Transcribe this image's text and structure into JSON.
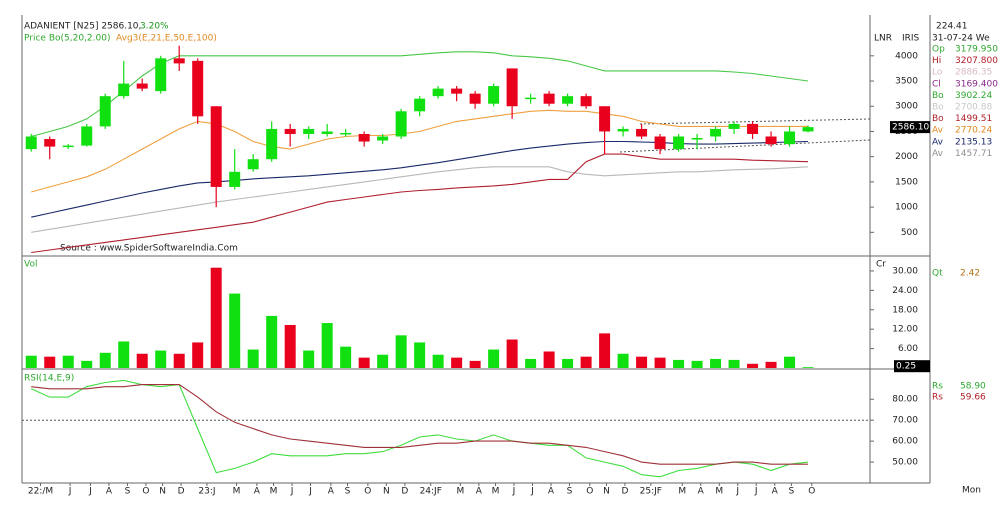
{
  "header": {
    "symbol": "ADANIENT [N25] 2586.10,",
    "change": "3.20%",
    "indicator1": "Price Bo(5,20,2.00)",
    "indicator2": "Avg3(E,21,E,50,E,100)",
    "source": "Source : www.SpiderSoftwareIndia.Com",
    "tags": [
      "LNR",
      "IRIS"
    ]
  },
  "info_panel": {
    "top": "224.41",
    "date": "31-07-24 We",
    "rows": [
      {
        "label": "Op",
        "value": "3179.950",
        "color": "#2fa82f"
      },
      {
        "label": "Hi",
        "value": "3207.800",
        "color": "#b0202a"
      },
      {
        "label": "Lo",
        "value": "2886.35",
        "color": "#d8b8c8"
      },
      {
        "label": "Cl",
        "value": "3169.400",
        "color": "#8a2a8a"
      },
      {
        "label": "Bo",
        "value": "3902.24",
        "color": "#2fa82f"
      },
      {
        "label": "Bo",
        "value": "2700.88",
        "color": "#c8c8c8"
      },
      {
        "label": "Bo",
        "value": "1499.51",
        "color": "#b0202a"
      },
      {
        "label": "Av",
        "value": "2770.24",
        "color": "#e08a20"
      },
      {
        "label": "Av",
        "value": "2135.13",
        "color": "#1a2a6a"
      },
      {
        "label": "Av",
        "value": "1457.71",
        "color": "#909090"
      }
    ],
    "volume_caption": "Cr",
    "volume_quote": {
      "label": "Qt",
      "value": "2.42"
    },
    "rsi_rows": [
      {
        "label": "Rs",
        "value": "58.90",
        "color": "#2fa82f"
      },
      {
        "label": "Rs",
        "value": "59.66",
        "color": "#b0202a"
      }
    ],
    "period": "Mon"
  },
  "chart_data": [
    {
      "type": "candlestick",
      "x": [
        0,
        1,
        2,
        3,
        4,
        5,
        6,
        7,
        8,
        9,
        10,
        11,
        12,
        13,
        14,
        15,
        16,
        17,
        18,
        19,
        20,
        21,
        22,
        23,
        24,
        25,
        26,
        27,
        28,
        29,
        30,
        31,
        32,
        33,
        34,
        35,
        36,
        37,
        38,
        39,
        40,
        41,
        42
      ],
      "open": [
        2150,
        2350,
        2200,
        2220,
        2600,
        3200,
        3450,
        3300,
        3950,
        3900,
        3000,
        1400,
        1750,
        1950,
        2550,
        2450,
        2450,
        2450,
        2450,
        2320,
        2400,
        2900,
        3200,
        3350,
        3250,
        3050,
        3750,
        3150,
        3250,
        3050,
        3200,
        3000,
        2500,
        2550,
        2400,
        2150,
        2350,
        2400,
        2550,
        2650,
        2400,
        2250,
        2500
      ],
      "high": [
        2450,
        2400,
        2250,
        2650,
        3250,
        3900,
        3550,
        4000,
        4200,
        3950,
        3000,
        2150,
        2050,
        2700,
        2650,
        2600,
        2650,
        2550,
        2500,
        2450,
        2950,
        3200,
        3400,
        3400,
        3300,
        3450,
        3750,
        3250,
        3300,
        3250,
        3250,
        3000,
        2600,
        2650,
        2450,
        2450,
        2450,
        2600,
        2700,
        2700,
        2500,
        2600,
        2620
      ],
      "low": [
        2100,
        1950,
        2150,
        2200,
        2550,
        3150,
        3300,
        3250,
        3700,
        2650,
        1000,
        1350,
        1700,
        1900,
        2200,
        2350,
        2400,
        2400,
        2200,
        2250,
        2350,
        2800,
        3150,
        3100,
        2950,
        3000,
        2750,
        3050,
        3000,
        3000,
        2950,
        2050,
        2400,
        2350,
        2050,
        2100,
        2150,
        2300,
        2450,
        2350,
        2200,
        2200,
        2480
      ],
      "close": [
        2400,
        2200,
        2220,
        2600,
        3200,
        3450,
        3350,
        3950,
        3850,
        2800,
        1400,
        1700,
        1950,
        2550,
        2450,
        2550,
        2500,
        2470,
        2300,
        2400,
        2900,
        3150,
        3350,
        3250,
        3050,
        3400,
        3000,
        3170,
        3050,
        3200,
        3000,
        2500,
        2550,
        2400,
        2150,
        2400,
        2370,
        2550,
        2650,
        2450,
        2250,
        2500,
        2586.1
      ],
      "up_color": "#10e010",
      "down_color": "#e8001c",
      "last_price_label": "2586.10",
      "overlays": [
        {
          "color": "#48c848",
          "values": [
            2400,
            2500,
            2600,
            2750,
            3000,
            3300,
            3600,
            3850,
            4000,
            4000,
            4000,
            4000,
            4000,
            4000,
            4000,
            4000,
            4000,
            4000,
            4000,
            4000,
            4000,
            4030,
            4060,
            4080,
            4080,
            4060,
            4000,
            3980,
            3950,
            3900,
            3800,
            3700,
            3700,
            3700,
            3700,
            3700,
            3700,
            3700,
            3680,
            3650,
            3600,
            3550,
            3500
          ]
        },
        {
          "color": "#f0a040",
          "values": [
            1300,
            1400,
            1500,
            1600,
            1750,
            1950,
            2150,
            2350,
            2550,
            2700,
            2650,
            2500,
            2300,
            2200,
            2150,
            2250,
            2350,
            2400,
            2420,
            2420,
            2450,
            2500,
            2600,
            2700,
            2750,
            2800,
            2850,
            2900,
            2920,
            2900,
            2900,
            2850,
            2800,
            2700,
            2650,
            2600,
            2600,
            2600,
            2600,
            2600,
            2600,
            2600,
            2600
          ]
        },
        {
          "color": "#1a2a6a",
          "values": [
            800,
            880,
            960,
            1040,
            1120,
            1200,
            1280,
            1350,
            1420,
            1480,
            1500,
            1530,
            1560,
            1580,
            1600,
            1620,
            1650,
            1680,
            1710,
            1740,
            1780,
            1830,
            1880,
            1940,
            2000,
            2060,
            2120,
            2170,
            2210,
            2250,
            2280,
            2300,
            2300,
            2290,
            2280,
            2260,
            2250,
            2250,
            2260,
            2270,
            2280,
            2290,
            2300
          ]
        },
        {
          "color": "#b8b8b8",
          "values": [
            500,
            560,
            620,
            680,
            740,
            800,
            860,
            920,
            980,
            1040,
            1100,
            1150,
            1200,
            1250,
            1300,
            1350,
            1400,
            1450,
            1500,
            1550,
            1600,
            1650,
            1700,
            1740,
            1780,
            1800,
            1800,
            1800,
            1800,
            1700,
            1650,
            1620,
            1640,
            1660,
            1680,
            1700,
            1700,
            1720,
            1740,
            1750,
            1760,
            1780,
            1800
          ]
        },
        {
          "color": "#b02030",
          "values": [
            100,
            150,
            200,
            250,
            300,
            350,
            400,
            450,
            500,
            550,
            600,
            650,
            700,
            800,
            900,
            1000,
            1100,
            1150,
            1200,
            1250,
            1300,
            1330,
            1350,
            1380,
            1400,
            1420,
            1450,
            1500,
            1550,
            1550,
            1900,
            2050,
            2050,
            2000,
            1950,
            1950,
            1950,
            1950,
            1950,
            1930,
            1920,
            1910,
            1900
          ]
        }
      ],
      "ylim": [
        50,
        4750
      ],
      "yticks": [
        500,
        1000,
        1500,
        2000,
        2500,
        3000,
        3500,
        4000
      ]
    },
    {
      "type": "bar",
      "title": "Vol",
      "values": [
        3.8,
        3.5,
        3.8,
        2.2,
        4.7,
        8.2,
        4.4,
        5.4,
        4.4,
        7.9,
        31,
        23,
        5.7,
        16.1,
        13.3,
        5.4,
        13.9,
        6.6,
        3.2,
        4.1,
        10.1,
        7.9,
        4.1,
        3.2,
        2.2,
        5.7,
        8.8,
        2.8,
        5.1,
        2.8,
        3.5,
        10.7,
        4.4,
        3.5,
        3.2,
        2.5,
        2.2,
        2.8,
        2.5,
        1.3,
        1.9,
        3.5,
        0.25
      ],
      "up_color": "#10e010",
      "down_color": "#e8001c",
      "ylim": [
        0,
        34
      ],
      "yticks": [
        {
          "value": 6,
          "label": "6.00"
        },
        {
          "value": 12,
          "label": "12.00"
        },
        {
          "value": 18,
          "label": "18.00"
        },
        {
          "value": 24,
          "label": "24.00"
        },
        {
          "value": 30,
          "label": "30.00"
        }
      ]
    },
    {
      "type": "line",
      "title": "RSI(14,E,9)",
      "series": [
        {
          "color": "#40dd40",
          "values": [
            85,
            81,
            81,
            86,
            88,
            89,
            87,
            86,
            87,
            66,
            45,
            47,
            50,
            54,
            53,
            53,
            53,
            54,
            54,
            55,
            58,
            62,
            63,
            61,
            60,
            63,
            60,
            59,
            58,
            58,
            52,
            50,
            48,
            44,
            43,
            46,
            47,
            49,
            50,
            49,
            46,
            49,
            50
          ]
        },
        {
          "color": "#a0303a",
          "values": [
            86,
            85,
            85,
            85,
            86,
            86,
            87,
            87,
            87,
            81,
            74,
            69,
            66,
            63,
            61,
            60,
            59,
            58,
            57,
            57,
            57,
            58,
            59,
            59,
            60,
            60,
            60,
            59,
            59,
            58,
            57,
            55,
            53,
            50,
            49,
            49,
            49,
            49,
            50,
            50,
            49,
            49,
            49
          ]
        }
      ],
      "reference_line": 70,
      "ylim": [
        40.5,
        93
      ],
      "yticks": [
        {
          "value": 50,
          "label": "50.00"
        },
        {
          "value": 60,
          "label": "60.00"
        },
        {
          "value": 70,
          "label": "70.00"
        },
        {
          "value": 80,
          "label": "80.00"
        }
      ],
      "xlim": [
        -0.5,
        45.35
      ],
      "xticks": [
        {
          "value": 0.5,
          "label": "22:/M"
        },
        {
          "value": 2.1,
          "label": "J"
        },
        {
          "value": 3.2,
          "label": "J"
        },
        {
          "value": 4.2,
          "label": "A"
        },
        {
          "value": 5.2,
          "label": "S"
        },
        {
          "value": 6.2,
          "label": "O"
        },
        {
          "value": 7.1,
          "label": "N"
        },
        {
          "value": 8.1,
          "label": "D"
        },
        {
          "value": 9.5,
          "label": "23:J"
        },
        {
          "value": 11.1,
          "label": "M"
        },
        {
          "value": 12.2,
          "label": "A"
        },
        {
          "value": 13.1,
          "label": "M"
        },
        {
          "value": 14.1,
          "label": "J"
        },
        {
          "value": 15.1,
          "label": "J"
        },
        {
          "value": 16.2,
          "label": "A"
        },
        {
          "value": 17.1,
          "label": "S"
        },
        {
          "value": 18.2,
          "label": "O"
        },
        {
          "value": 19.2,
          "label": "N"
        },
        {
          "value": 20.2,
          "label": "D"
        },
        {
          "value": 21.6,
          "label": "24:JF"
        },
        {
          "value": 23.2,
          "label": "M"
        },
        {
          "value": 24.2,
          "label": "A"
        },
        {
          "value": 25.1,
          "label": "M"
        },
        {
          "value": 26.1,
          "label": "J"
        },
        {
          "value": 27.1,
          "label": "J"
        },
        {
          "value": 28.1,
          "label": "A"
        },
        {
          "value": 29.1,
          "label": "S"
        },
        {
          "value": 30.2,
          "label": "O"
        },
        {
          "value": 31.1,
          "label": "N"
        },
        {
          "value": 32.1,
          "label": "D"
        },
        {
          "value": 33.5,
          "label": "25:JF"
        },
        {
          "value": 35.2,
          "label": "M"
        },
        {
          "value": 36.2,
          "label": "A"
        },
        {
          "value": 37.2,
          "label": "M"
        },
        {
          "value": 38.2,
          "label": "J"
        },
        {
          "value": 39.2,
          "label": "J"
        },
        {
          "value": 40.2,
          "label": "A"
        },
        {
          "value": 41.1,
          "label": "S"
        },
        {
          "value": 42.2,
          "label": "O"
        }
      ]
    }
  ]
}
